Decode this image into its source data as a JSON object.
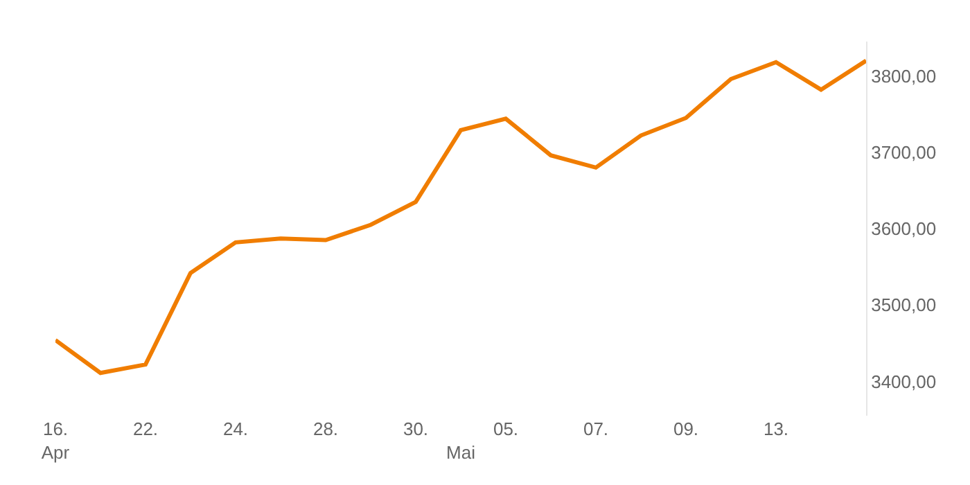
{
  "chart_data": {
    "type": "line",
    "categories": [
      "16.\nApr",
      null,
      "22.",
      null,
      "24.",
      null,
      "28.",
      null,
      "30.",
      "\nMai",
      "05.",
      null,
      "07.",
      null,
      "09.",
      null,
      "13.",
      null,
      null
    ],
    "series": [
      {
        "color": "#f07d00",
        "values": [
          3454,
          3411,
          3422,
          3542,
          3582,
          3587,
          3585,
          3605,
          3635,
          3729,
          3744,
          3696,
          3680,
          3722,
          3745,
          3796,
          3818,
          3782,
          3820
        ]
      }
    ],
    "ylim": [
      3355,
      3845
    ],
    "yticks": [
      {
        "value": 3400,
        "label": "3400,00"
      },
      {
        "value": 3500,
        "label": "3500,00"
      },
      {
        "value": 3600,
        "label": "3600,00"
      },
      {
        "value": 3700,
        "label": "3700,00"
      },
      {
        "value": 3800,
        "label": "3800,00"
      }
    ],
    "grid": false,
    "marker": "none",
    "line_style": "solid"
  }
}
